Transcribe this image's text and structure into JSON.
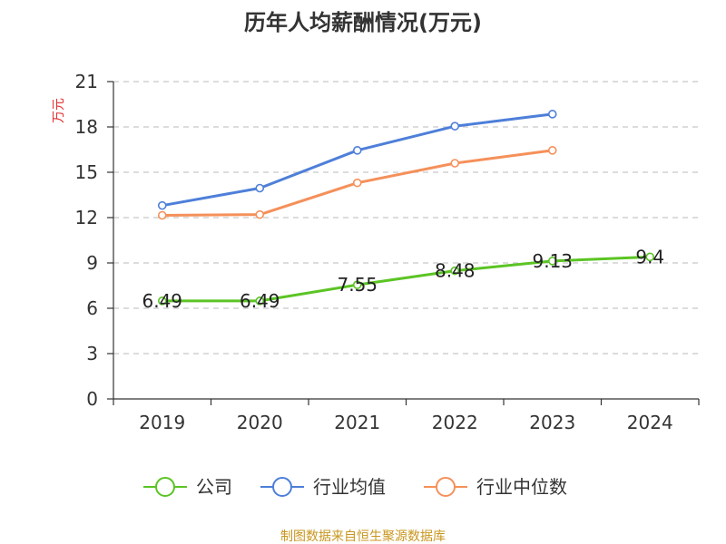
{
  "chart_data": {
    "type": "line",
    "title": "历年人均薪酬情况(万元)",
    "ylabel": "万元",
    "categories": [
      "2019",
      "2020",
      "2021",
      "2022",
      "2023",
      "2024"
    ],
    "ylim": [
      0,
      21
    ],
    "yticks": [
      "0",
      "3",
      "6",
      "9",
      "12",
      "15",
      "18",
      "21"
    ],
    "grid": true,
    "legend_position": "bottom",
    "series": [
      {
        "name": "公司",
        "color": "#5bc424",
        "values": [
          6.49,
          6.49,
          7.55,
          8.48,
          9.13,
          9.4
        ],
        "labels": [
          "6.49",
          "6.49",
          "7.55",
          "8.48",
          "9.13",
          "9.4"
        ]
      },
      {
        "name": "行业均值",
        "color": "#4e7fd9",
        "values": [
          12.8,
          13.95,
          16.45,
          18.05,
          18.85,
          null
        ]
      },
      {
        "name": "行业中位数",
        "color": "#f5905a",
        "values": [
          12.15,
          12.2,
          14.3,
          15.6,
          16.45,
          null
        ]
      }
    ]
  },
  "source_text": "制图数据来自恒生聚源数据库"
}
